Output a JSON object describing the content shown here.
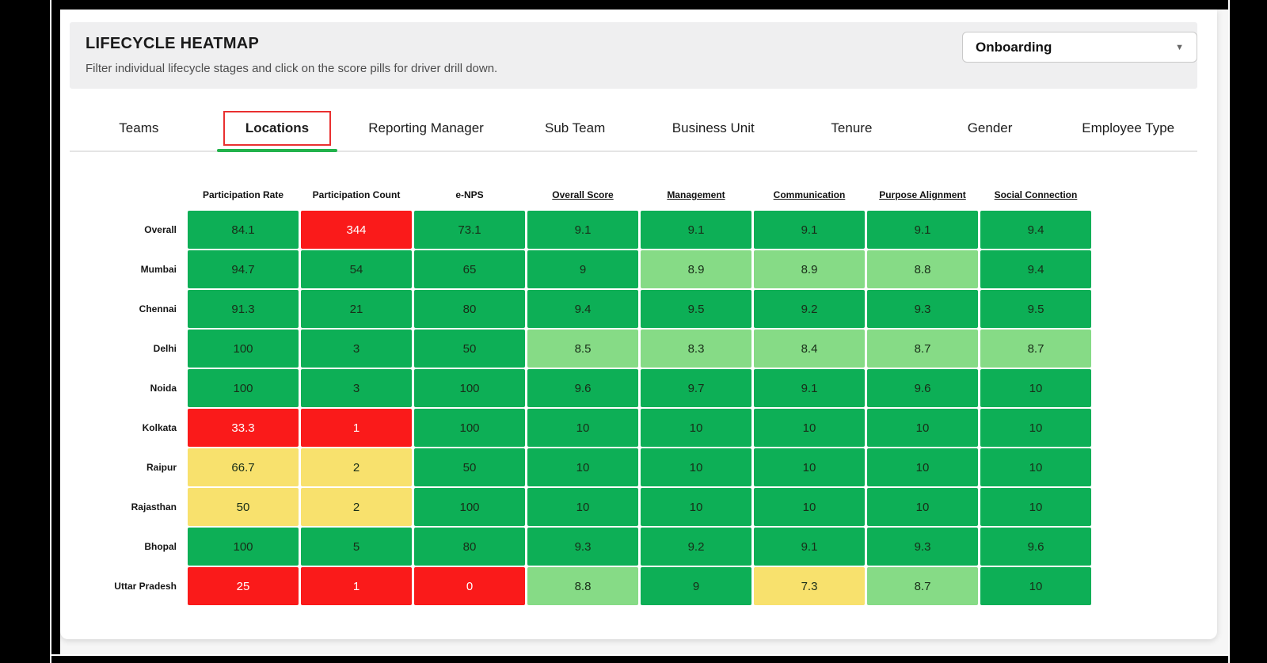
{
  "header": {
    "title": "LIFECYCLE HEATMAP",
    "subtitle": "Filter individual lifecycle stages and click on the score pills for driver drill down."
  },
  "dropdown": {
    "value": "Onboarding",
    "caret_icon": "chevron-down"
  },
  "tabs": [
    {
      "label": "Teams",
      "active": false
    },
    {
      "label": "Locations",
      "active": true
    },
    {
      "label": "Reporting Manager",
      "active": false
    },
    {
      "label": "Sub Team",
      "active": false
    },
    {
      "label": "Business Unit",
      "active": false
    },
    {
      "label": "Tenure",
      "active": false
    },
    {
      "label": "Gender",
      "active": false
    },
    {
      "label": "Employee Type",
      "active": false
    }
  ],
  "colors": {
    "green": "#0DAF56",
    "lightgreen": "#86DB86",
    "yellow": "#F8E16D",
    "red": "#FA1A1A",
    "tab_active_box": "#E93030",
    "tab_active_underline": "#21B24B"
  },
  "chart_data": {
    "type": "heatmap",
    "title": "LIFECYCLE HEATMAP",
    "stage_filter": "Onboarding",
    "grouping": "Locations",
    "columns": [
      {
        "label": "Participation Rate",
        "underline": false
      },
      {
        "label": "Participation Count",
        "underline": false
      },
      {
        "label": "e-NPS",
        "underline": false
      },
      {
        "label": "Overall Score",
        "underline": true
      },
      {
        "label": "Management",
        "underline": true
      },
      {
        "label": "Communication",
        "underline": true
      },
      {
        "label": "Purpose Alignment",
        "underline": true
      },
      {
        "label": "Social Connection",
        "underline": true
      }
    ],
    "rows": [
      {
        "label": "Overall",
        "cells": [
          {
            "v": "84.1",
            "c": "green"
          },
          {
            "v": "344",
            "c": "red"
          },
          {
            "v": "73.1",
            "c": "green"
          },
          {
            "v": "9.1",
            "c": "green"
          },
          {
            "v": "9.1",
            "c": "green"
          },
          {
            "v": "9.1",
            "c": "green"
          },
          {
            "v": "9.1",
            "c": "green"
          },
          {
            "v": "9.4",
            "c": "green"
          }
        ]
      },
      {
        "label": "Mumbai",
        "cells": [
          {
            "v": "94.7",
            "c": "green"
          },
          {
            "v": "54",
            "c": "green"
          },
          {
            "v": "65",
            "c": "green"
          },
          {
            "v": "9",
            "c": "green"
          },
          {
            "v": "8.9",
            "c": "lightgreen"
          },
          {
            "v": "8.9",
            "c": "lightgreen"
          },
          {
            "v": "8.8",
            "c": "lightgreen"
          },
          {
            "v": "9.4",
            "c": "green"
          }
        ]
      },
      {
        "label": "Chennai",
        "cells": [
          {
            "v": "91.3",
            "c": "green"
          },
          {
            "v": "21",
            "c": "green"
          },
          {
            "v": "80",
            "c": "green"
          },
          {
            "v": "9.4",
            "c": "green"
          },
          {
            "v": "9.5",
            "c": "green"
          },
          {
            "v": "9.2",
            "c": "green"
          },
          {
            "v": "9.3",
            "c": "green"
          },
          {
            "v": "9.5",
            "c": "green"
          }
        ]
      },
      {
        "label": "Delhi",
        "cells": [
          {
            "v": "100",
            "c": "green"
          },
          {
            "v": "3",
            "c": "green"
          },
          {
            "v": "50",
            "c": "green"
          },
          {
            "v": "8.5",
            "c": "lightgreen"
          },
          {
            "v": "8.3",
            "c": "lightgreen"
          },
          {
            "v": "8.4",
            "c": "lightgreen"
          },
          {
            "v": "8.7",
            "c": "lightgreen"
          },
          {
            "v": "8.7",
            "c": "lightgreen"
          }
        ]
      },
      {
        "label": "Noida",
        "cells": [
          {
            "v": "100",
            "c": "green"
          },
          {
            "v": "3",
            "c": "green"
          },
          {
            "v": "100",
            "c": "green"
          },
          {
            "v": "9.6",
            "c": "green"
          },
          {
            "v": "9.7",
            "c": "green"
          },
          {
            "v": "9.1",
            "c": "green"
          },
          {
            "v": "9.6",
            "c": "green"
          },
          {
            "v": "10",
            "c": "green"
          }
        ]
      },
      {
        "label": "Kolkata",
        "cells": [
          {
            "v": "33.3",
            "c": "red"
          },
          {
            "v": "1",
            "c": "red"
          },
          {
            "v": "100",
            "c": "green"
          },
          {
            "v": "10",
            "c": "green"
          },
          {
            "v": "10",
            "c": "green"
          },
          {
            "v": "10",
            "c": "green"
          },
          {
            "v": "10",
            "c": "green"
          },
          {
            "v": "10",
            "c": "green"
          }
        ]
      },
      {
        "label": "Raipur",
        "cells": [
          {
            "v": "66.7",
            "c": "yellow"
          },
          {
            "v": "2",
            "c": "yellow"
          },
          {
            "v": "50",
            "c": "green"
          },
          {
            "v": "10",
            "c": "green"
          },
          {
            "v": "10",
            "c": "green"
          },
          {
            "v": "10",
            "c": "green"
          },
          {
            "v": "10",
            "c": "green"
          },
          {
            "v": "10",
            "c": "green"
          }
        ]
      },
      {
        "label": "Rajasthan",
        "cells": [
          {
            "v": "50",
            "c": "yellow"
          },
          {
            "v": "2",
            "c": "yellow"
          },
          {
            "v": "100",
            "c": "green"
          },
          {
            "v": "10",
            "c": "green"
          },
          {
            "v": "10",
            "c": "green"
          },
          {
            "v": "10",
            "c": "green"
          },
          {
            "v": "10",
            "c": "green"
          },
          {
            "v": "10",
            "c": "green"
          }
        ]
      },
      {
        "label": "Bhopal",
        "cells": [
          {
            "v": "100",
            "c": "green"
          },
          {
            "v": "5",
            "c": "green"
          },
          {
            "v": "80",
            "c": "green"
          },
          {
            "v": "9.3",
            "c": "green"
          },
          {
            "v": "9.2",
            "c": "green"
          },
          {
            "v": "9.1",
            "c": "green"
          },
          {
            "v": "9.3",
            "c": "green"
          },
          {
            "v": "9.6",
            "c": "green"
          }
        ]
      },
      {
        "label": "Uttar Pradesh",
        "cells": [
          {
            "v": "25",
            "c": "red"
          },
          {
            "v": "1",
            "c": "red"
          },
          {
            "v": "0",
            "c": "red"
          },
          {
            "v": "8.8",
            "c": "lightgreen"
          },
          {
            "v": "9",
            "c": "green"
          },
          {
            "v": "7.3",
            "c": "yellow"
          },
          {
            "v": "8.7",
            "c": "lightgreen"
          },
          {
            "v": "10",
            "c": "green"
          }
        ]
      }
    ]
  }
}
